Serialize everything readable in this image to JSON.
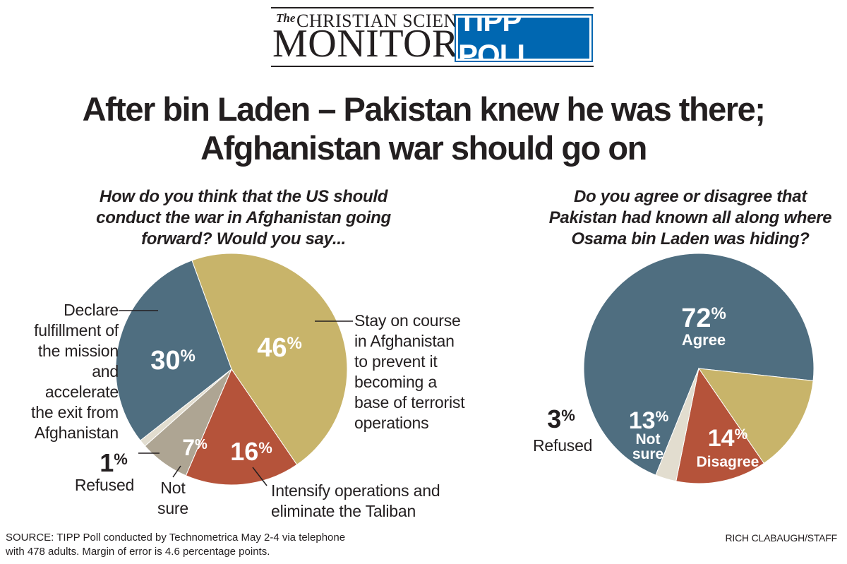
{
  "masthead": {
    "the": "The",
    "christian_science": "CHRISTIAN SCIENCE",
    "monitor": "MONITOR",
    "poll_badge": "TIPP POLL"
  },
  "headline": {
    "line1": "After bin Laden – Pakistan knew he was there;",
    "line2": "Afghanistan war should go on"
  },
  "left": {
    "question_lines": [
      "How do you think that the US should",
      "conduct the war in Afghanistan going",
      "forward? Would you say..."
    ],
    "labels": {
      "declare": [
        "Declare",
        "fulfillment of",
        "the mission",
        "and accelerate",
        "the exit from",
        "Afghanistan"
      ],
      "stay": [
        "Stay on course",
        "in Afghanistan",
        "to prevent it",
        "becoming a",
        "base of terrorist",
        "operations"
      ],
      "intensify": [
        "Intensify operations and",
        "eliminate the Taliban"
      ],
      "not_sure": [
        "Not",
        "sure"
      ],
      "refused_pct": "1",
      "refused": "Refused"
    }
  },
  "right": {
    "question_lines": [
      "Do you agree or disagree that",
      "Pakistan had known all along where",
      "Osama bin Laden was hiding?"
    ],
    "labels": {
      "agree": "Agree",
      "not_sure": [
        "Not",
        "sure"
      ],
      "disagree": "Disagree",
      "refused_pct": "3",
      "refused": "Refused"
    }
  },
  "percent_sign": "%",
  "chart_data": [
    {
      "type": "pie",
      "title": "How do you think that the US should conduct the war in Afghanistan going forward? Would you say...",
      "categories": [
        "Stay on course in Afghanistan to prevent it becoming a base of terrorist operations",
        "Intensify operations and eliminate the Taliban",
        "Not sure",
        "Refused",
        "Declare fulfillment of the mission and accelerate the exit from Afghanistan"
      ],
      "values": [
        46,
        16,
        7,
        1,
        30
      ],
      "colors": [
        "#c8b46a",
        "#b5533a",
        "#aea593",
        "#e2ddcf",
        "#4f6e80"
      ]
    },
    {
      "type": "pie",
      "title": "Do you agree or disagree that Pakistan had known all along where Osama bin Laden was hiding?",
      "categories": [
        "Agree",
        "Disagree",
        "Not sure",
        "Refused"
      ],
      "values": [
        72,
        14,
        13,
        3
      ],
      "colors": [
        "#4f6e80",
        "#c8b46a",
        "#b5533a",
        "#e2ddcf"
      ]
    }
  ],
  "source": {
    "line1": "SOURCE: TIPP Poll conducted by Technometrica May 2-4 via telephone",
    "line2": "with 478 adults. Margin of error is 4.6 percentage points."
  },
  "credit": "RICH CLABAUGH/STAFF"
}
